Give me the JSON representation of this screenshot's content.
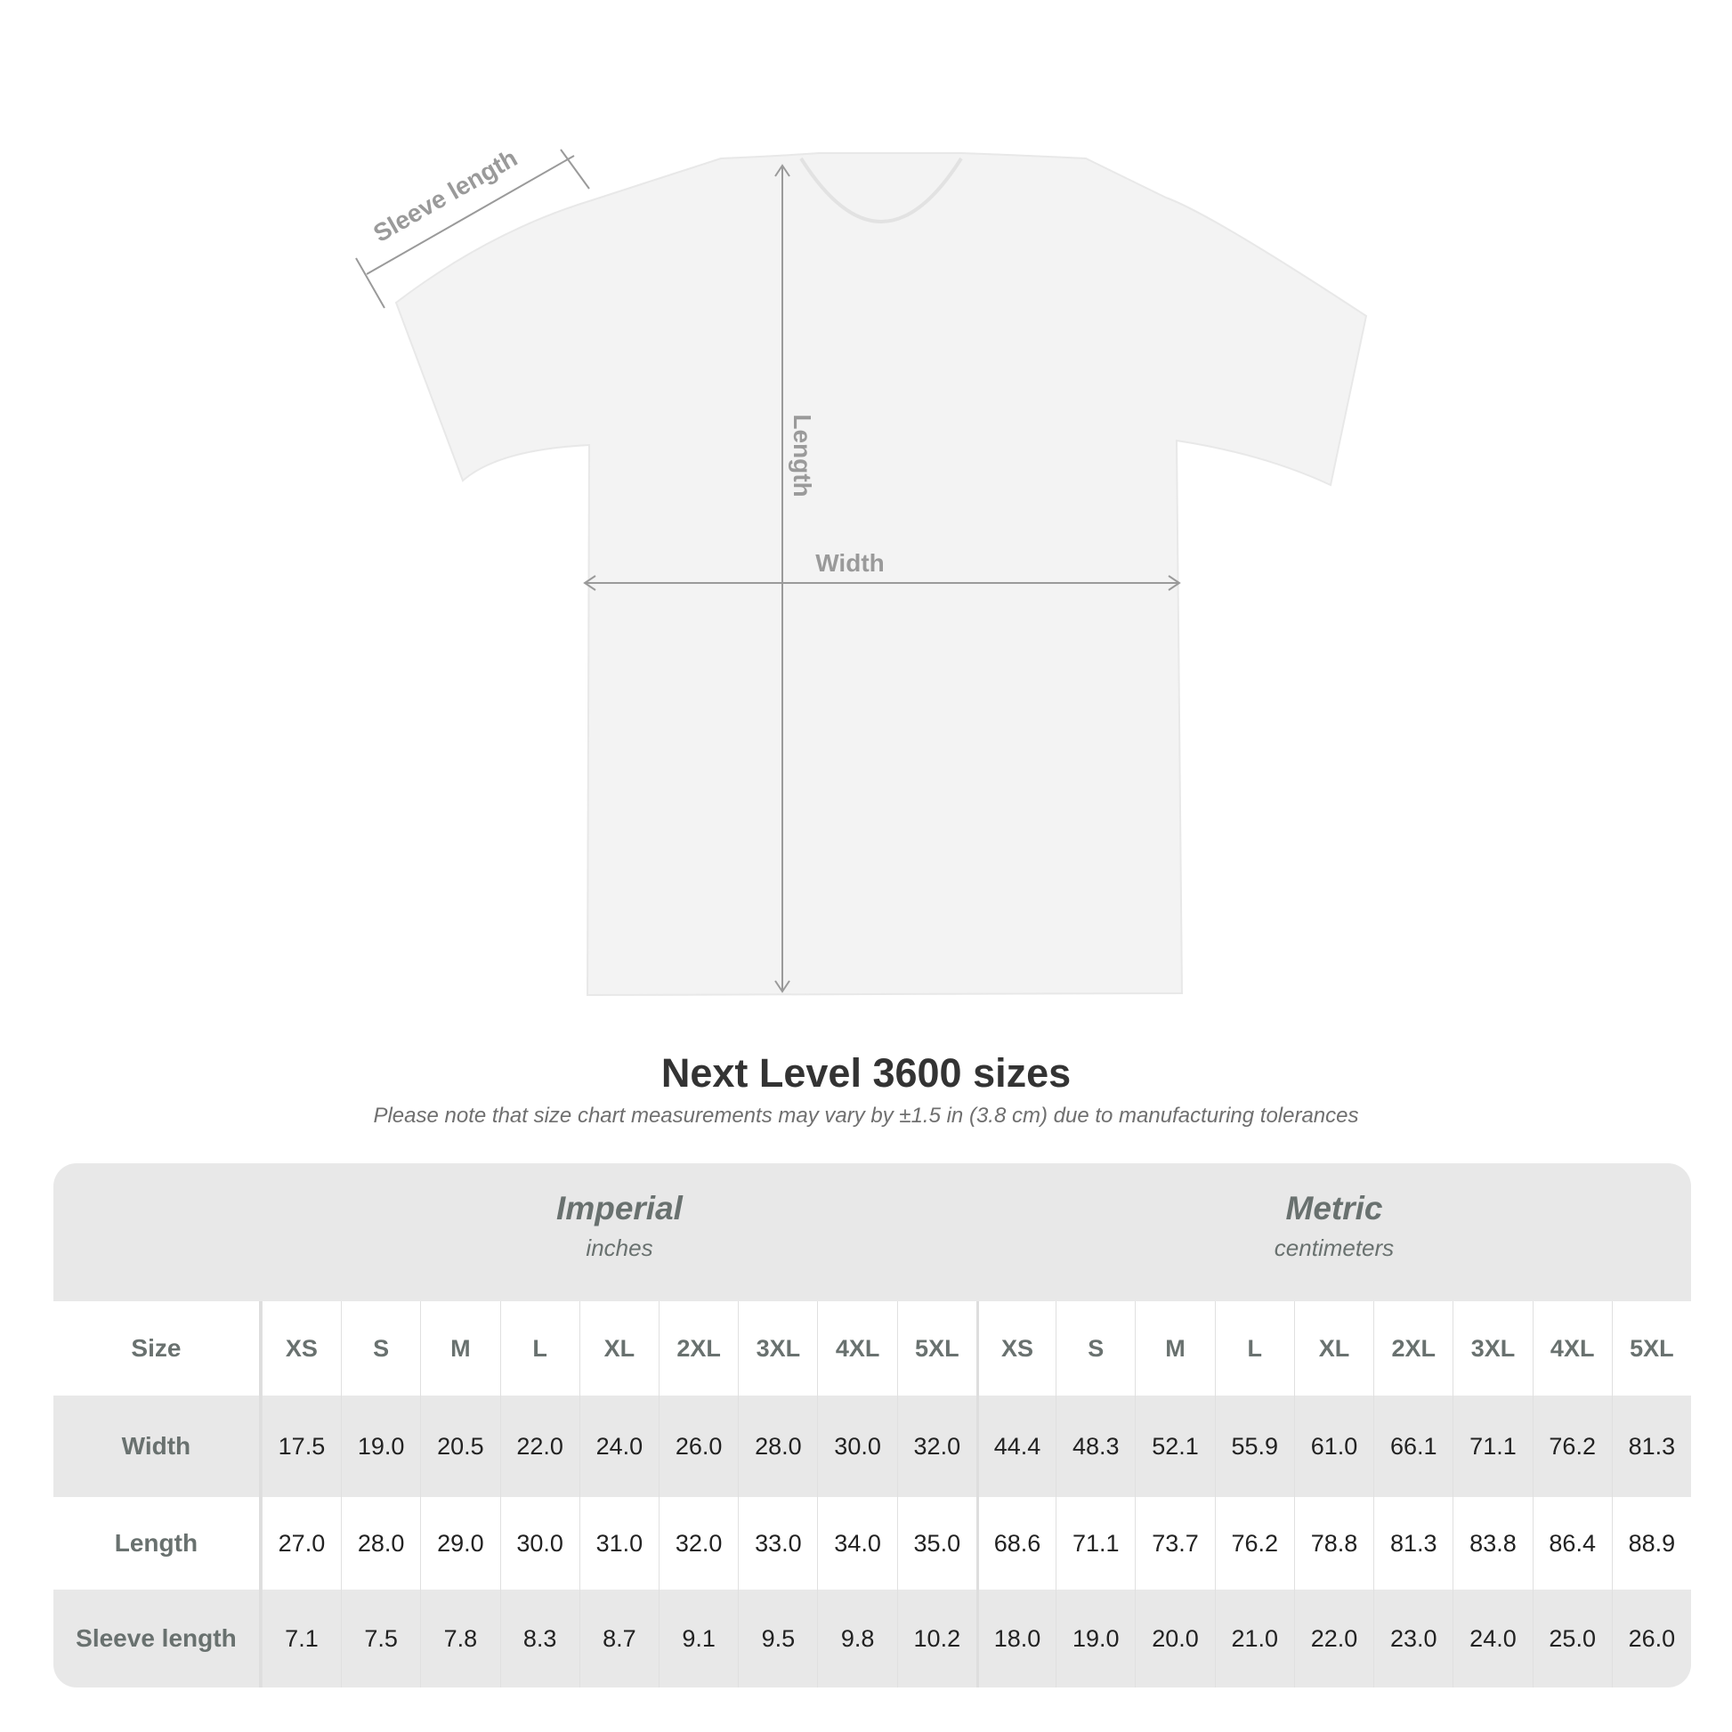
{
  "diagram": {
    "labels": {
      "sleeve": "Sleeve length",
      "length": "Length",
      "width": "Width"
    },
    "colors": {
      "shirt": "#f3f3f3",
      "measure_line": "#9a9a9a"
    }
  },
  "title": "Next Level 3600 sizes",
  "subtitle": "Please note that size chart measurements may vary by ±1.5 in (3.8 cm) due to manufacturing tolerances",
  "table": {
    "imperial": {
      "heading": "Imperial",
      "unit": "inches"
    },
    "metric": {
      "heading": "Metric",
      "unit": "centimeters"
    },
    "size_label": "Size",
    "sizes": [
      "XS",
      "S",
      "M",
      "L",
      "XL",
      "2XL",
      "3XL",
      "4XL",
      "5XL"
    ],
    "rows": [
      {
        "label": "Width",
        "imperial": [
          "17.5",
          "19.0",
          "20.5",
          "22.0",
          "24.0",
          "26.0",
          "28.0",
          "30.0",
          "32.0"
        ],
        "metric": [
          "44.4",
          "48.3",
          "52.1",
          "55.9",
          "61.0",
          "66.1",
          "71.1",
          "76.2",
          "81.3"
        ]
      },
      {
        "label": "Length",
        "imperial": [
          "27.0",
          "28.0",
          "29.0",
          "30.0",
          "31.0",
          "32.0",
          "33.0",
          "34.0",
          "35.0"
        ],
        "metric": [
          "68.6",
          "71.1",
          "73.7",
          "76.2",
          "78.8",
          "81.3",
          "83.8",
          "86.4",
          "88.9"
        ]
      },
      {
        "label": "Sleeve length",
        "imperial": [
          "7.1",
          "7.5",
          "7.8",
          "8.3",
          "8.7",
          "9.1",
          "9.5",
          "9.8",
          "10.2"
        ],
        "metric": [
          "18.0",
          "19.0",
          "20.0",
          "21.0",
          "22.0",
          "23.0",
          "24.0",
          "25.0",
          "26.0"
        ]
      }
    ]
  }
}
